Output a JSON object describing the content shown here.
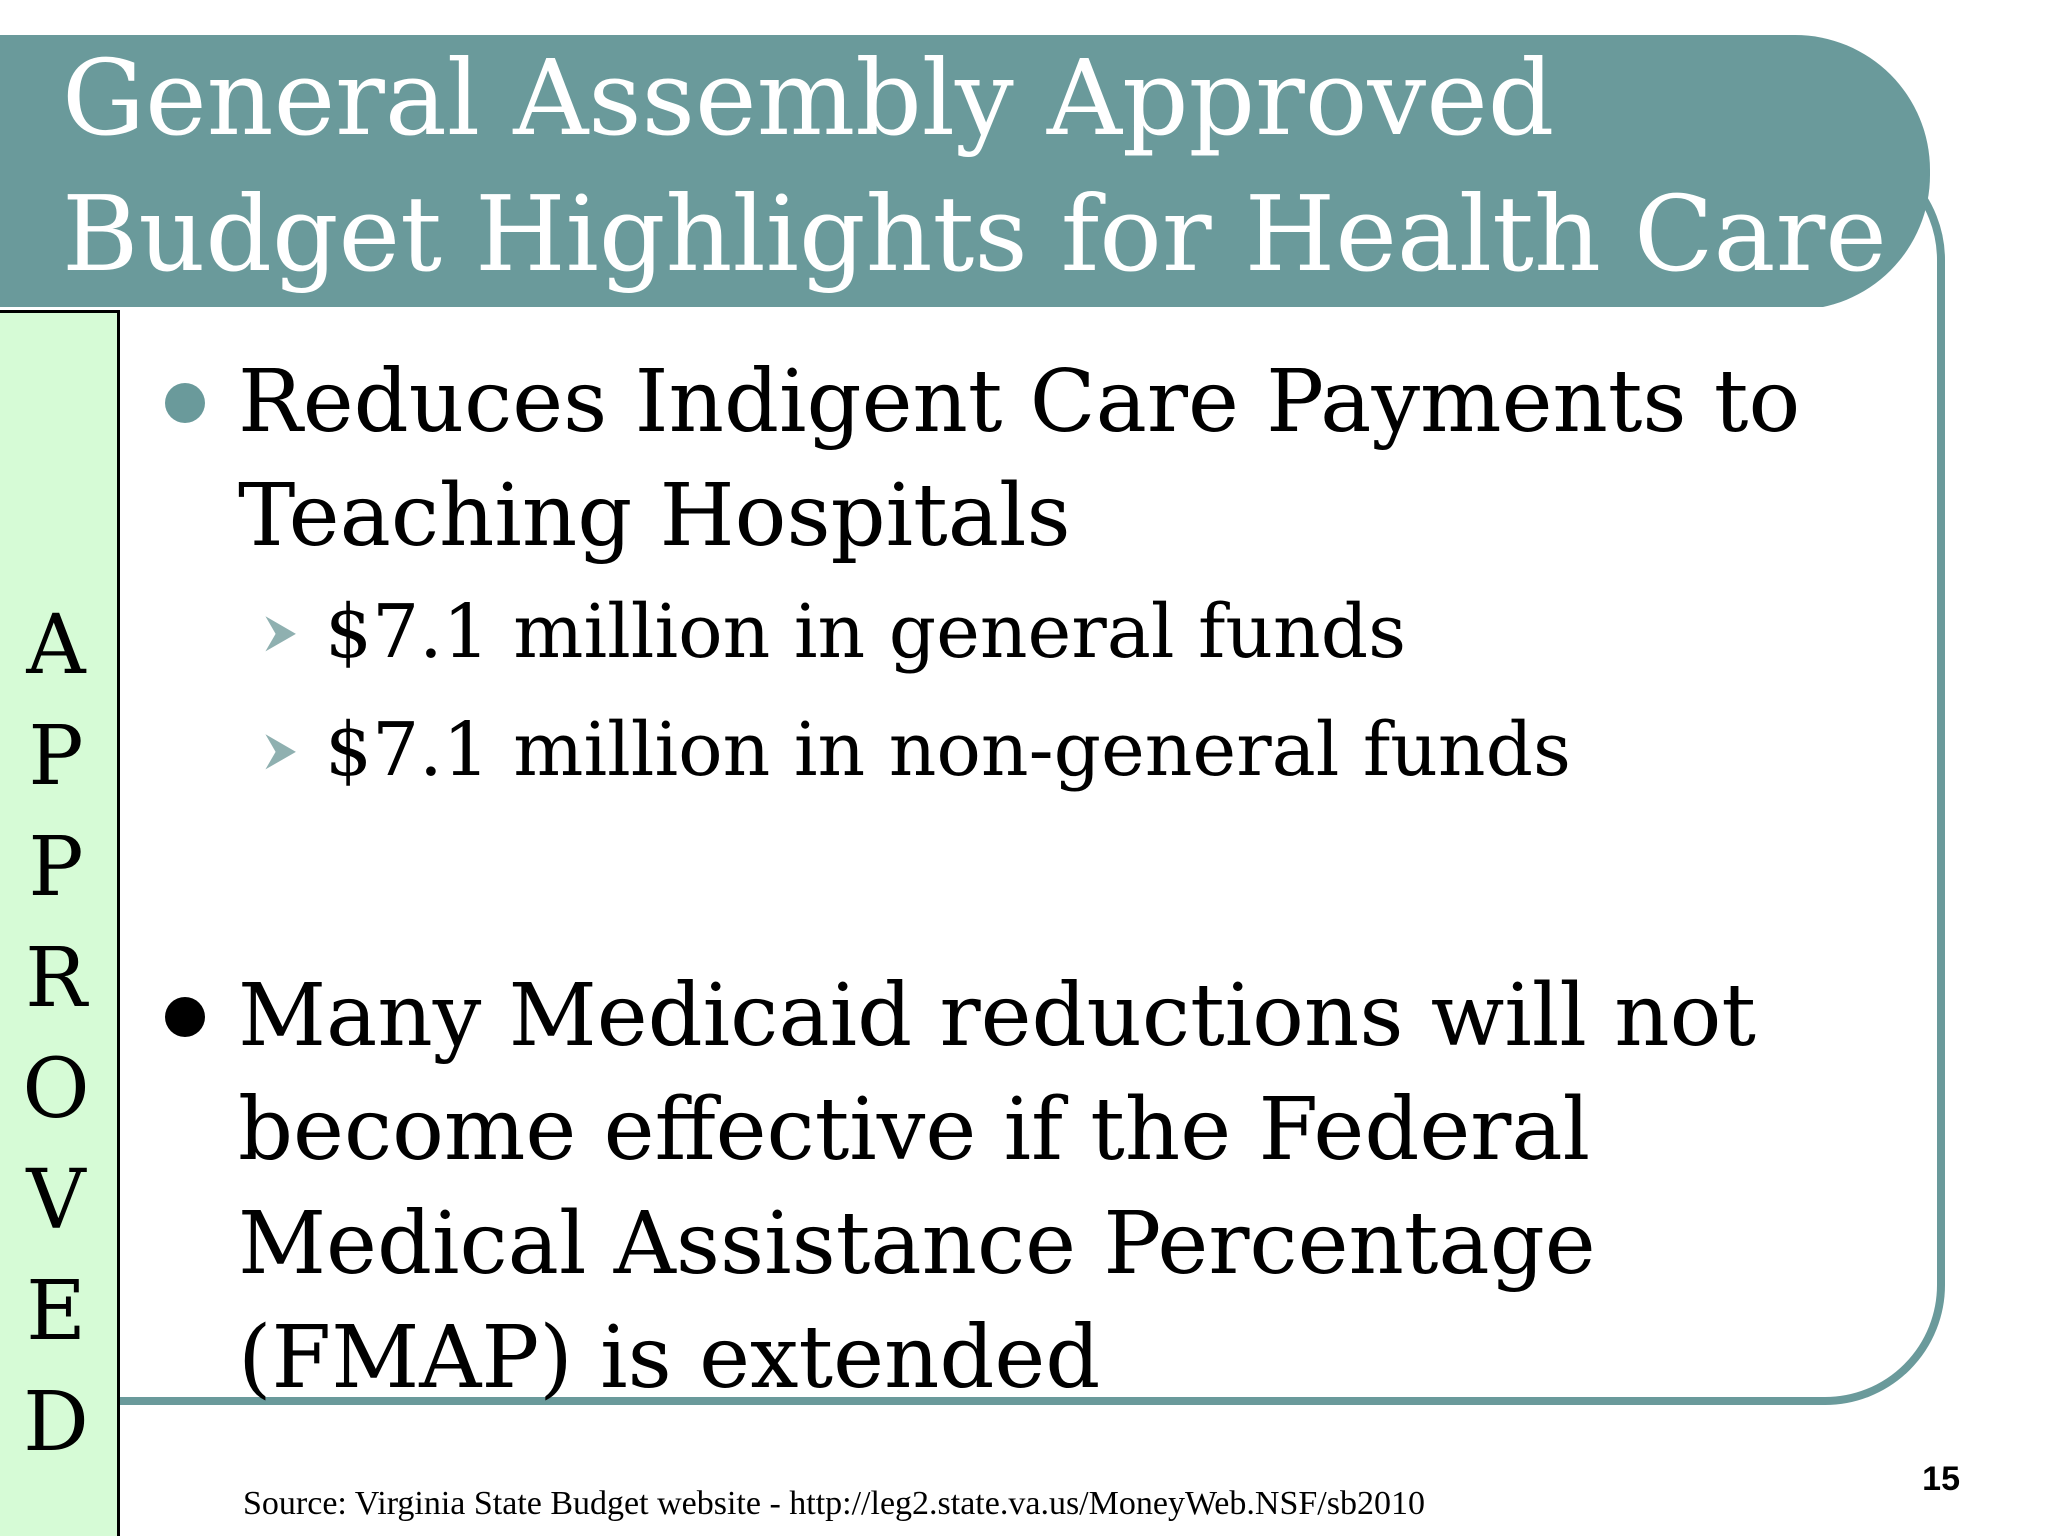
{
  "slide": {
    "title_lines": [
      "General Assembly Approved",
      "Budget Highlights for Health Care"
    ],
    "approved_letters": [
      "A",
      "P",
      "P",
      "R",
      "O",
      "V",
      "E",
      "D"
    ],
    "bullets": [
      {
        "text": "Reduces Indigent Care Payments to Teaching Hospitals",
        "marker_color": "#6a9a9b",
        "subitems": [
          "$7.1 million in general funds",
          "$7.1 million in non-general funds"
        ]
      },
      {
        "text": "Many Medicaid reductions will not become effective if the Federal Medical Assistance Percentage (FMAP) is extended",
        "marker_color": "#000000",
        "subitems": []
      }
    ],
    "page_number": "15",
    "source": "Source: Virginia State Budget website - http://leg2.state.va.us/MoneyWeb.NSF/sb2010"
  },
  "colors": {
    "banner": "#6a9a9b",
    "approved_strip": "#d6fbd6",
    "text": "#000000"
  }
}
